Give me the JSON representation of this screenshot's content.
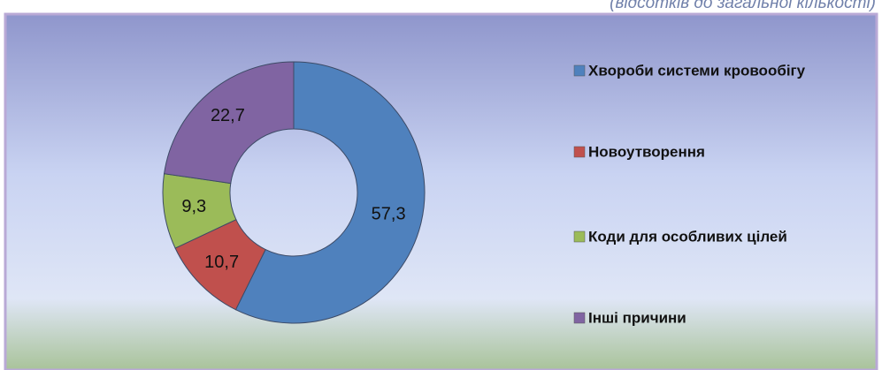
{
  "chart_data": {
    "type": "donut",
    "subtitle": "(відсотків до загальної кількості)",
    "categories": [
      "Хвороби системи кровообігу",
      "Новоутворення",
      "Коди для особливих цілей",
      "Інші причини"
    ],
    "values": [
      57.3,
      10.7,
      9.3,
      22.7
    ],
    "value_labels": [
      "57,3",
      "10,7",
      "9,3",
      "22,7"
    ],
    "colors": [
      "#4f81bd",
      "#c0504d",
      "#9bbb59",
      "#8064a2"
    ],
    "legend": "right"
  }
}
